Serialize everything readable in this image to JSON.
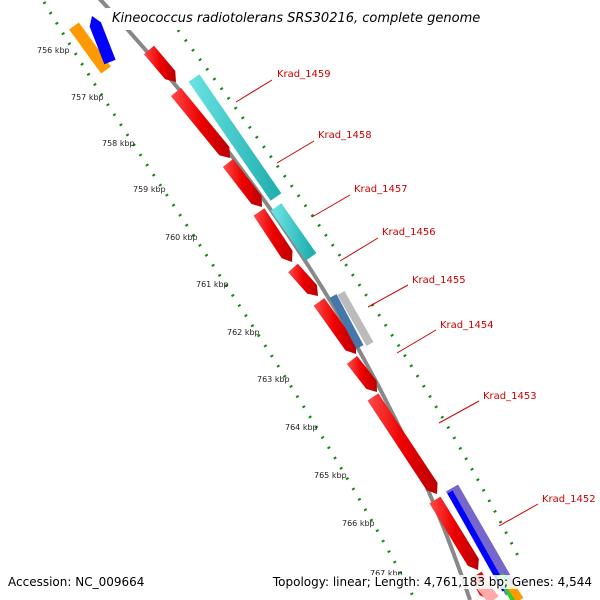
{
  "title": "Kineococcus radiotolerans SRS30216, complete genome",
  "footer": {
    "accession": "Accession: NC_009664",
    "topology": "Topology: linear; Length: 4,761,183 bp; Genes: 4,544"
  },
  "ticks": [
    "756 kbp",
    "757 kbp",
    "758 kbp",
    "759 kbp",
    "760 kbp",
    "761 kbp",
    "762 kbp",
    "763 kbp",
    "764 kbp",
    "765 kbp",
    "766 kbp",
    "767 kbp"
  ],
  "gene_labels": [
    "Krad_1459",
    "Krad_1458",
    "Krad_1457",
    "Krad_1456",
    "Krad_1455",
    "Krad_1454",
    "Krad_1453",
    "Krad_1452"
  ],
  "colors": {
    "backbone": "#888888",
    "cds_red": "#ff0000",
    "cyan": "#33cccc",
    "blue": "#0000ff",
    "orange": "#ff9900",
    "slate": "#4477aa",
    "grey": "#bbbbbb",
    "purple": "#7766cc",
    "tick_green": "#118811",
    "label_red": "#cc0000"
  }
}
